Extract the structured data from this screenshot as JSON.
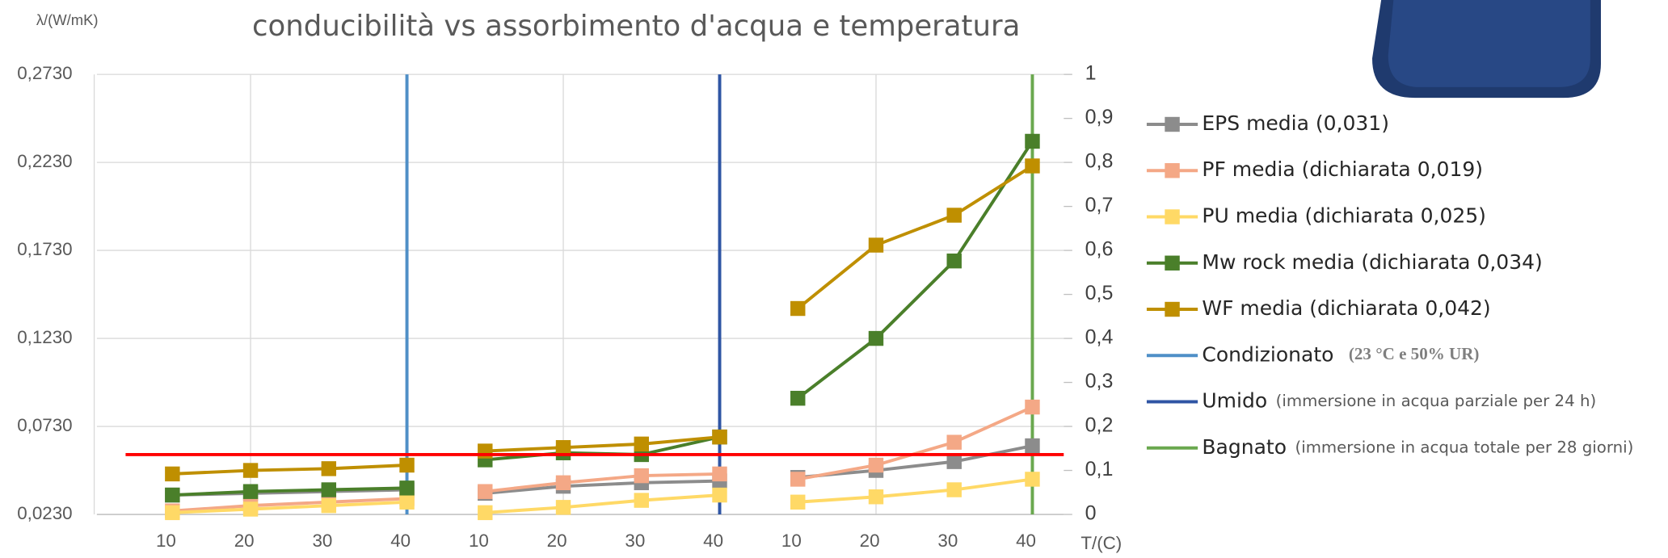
{
  "chart_data": {
    "type": "line",
    "title": "conducibilità vs assorbimento d'acqua e temperatura",
    "y_label": "λ/(W/mK)",
    "x_label": "T/(C)",
    "categories": [
      "10",
      "20",
      "30",
      "40",
      "10",
      "20",
      "30",
      "40",
      "10",
      "20",
      "30",
      "40"
    ],
    "ylim": [
      0.023,
      0.273
    ],
    "yticks": [
      {
        "value": 0.023,
        "label": "0,0230"
      },
      {
        "value": 0.073,
        "label": "0,0730"
      },
      {
        "value": 0.123,
        "label": "0,1230"
      },
      {
        "value": 0.173,
        "label": "0,1730"
      },
      {
        "value": 0.223,
        "label": "0,2230"
      },
      {
        "value": 0.273,
        "label": "0,2730"
      }
    ],
    "y2lim": [
      0,
      1
    ],
    "y2ticks": [
      0,
      {
        "value": 0.1,
        "label": "0,1"
      },
      {
        "value": 0.2,
        "label": "0,2"
      },
      {
        "value": 0.3,
        "label": "0,3"
      },
      {
        "value": 0.4,
        "label": "0,4"
      },
      {
        "value": 0.5,
        "label": "0,5"
      },
      {
        "value": 0.6,
        "label": "0,6"
      },
      {
        "value": 0.7,
        "label": "0,7"
      },
      {
        "value": 0.8,
        "label": "0,8"
      },
      {
        "value": 0.9,
        "label": "0,9"
      },
      1
    ],
    "grid": true,
    "series": [
      {
        "name": "EPS media (0,031)",
        "color": "#8c8c8c",
        "values": [
          0.034,
          0.035,
          0.036,
          0.037,
          0.035,
          0.039,
          0.041,
          0.042,
          0.044,
          0.048,
          0.053,
          0.062
        ]
      },
      {
        "name": "PF media (dichiarata 0,019)",
        "color": "#f4a886",
        "values": [
          0.025,
          0.028,
          0.03,
          0.032,
          0.036,
          0.041,
          0.045,
          0.046,
          0.043,
          0.051,
          0.064,
          0.084
        ]
      },
      {
        "name": "PU media (dichiarata 0,025)",
        "color": "#ffd966",
        "values": [
          0.024,
          0.026,
          0.028,
          0.03,
          0.024,
          0.027,
          0.031,
          0.034,
          0.03,
          0.033,
          0.037,
          0.043
        ]
      },
      {
        "name": "Mw rock media (dichiarata 0,034)",
        "color": "#4a7f2a",
        "values": [
          0.034,
          0.036,
          0.037,
          0.038,
          0.054,
          0.058,
          0.057,
          0.067,
          0.089,
          0.123,
          0.167,
          0.235
        ]
      },
      {
        "name": "WF media (dichiarata 0,042)",
        "color": "#bf8f00",
        "values": [
          0.046,
          0.048,
          0.049,
          0.051,
          0.059,
          0.061,
          0.063,
          0.067,
          0.14,
          0.176,
          0.193,
          0.221
        ]
      }
    ],
    "markers": [
      {
        "name": "Condizionato",
        "note": "(23 °C e 50% UR)",
        "color": "#4f8fc7"
      },
      {
        "name": "Umido",
        "note": "(immersione in acqua parziale per 24 h)",
        "color": "#2f55a4"
      },
      {
        "name": "Bagnato",
        "note": "(immersione in acqua totale per 28 giorni)",
        "color": "#6aa84f"
      }
    ],
    "reference_line": {
      "value": 0.057,
      "color": "#ff0000"
    }
  }
}
